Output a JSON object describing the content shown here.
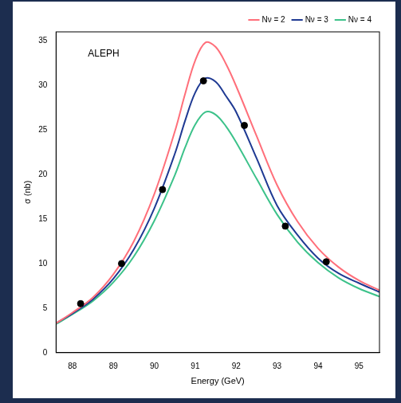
{
  "chart_data": {
    "type": "line",
    "annotation": "ALEPH",
    "x_label": "Energy (GeV)",
    "y_label": "σ (nb)",
    "xlim": [
      87.6,
      95.5
    ],
    "xticks": [
      88,
      89,
      90,
      91,
      92,
      93,
      94,
      95
    ],
    "ylim": [
      0,
      36
    ],
    "yticks": [
      0,
      5,
      10,
      15,
      20,
      25,
      30,
      35
    ],
    "grid": false,
    "legend": "top",
    "x": [
      87.6,
      88.0,
      88.5,
      89.0,
      89.5,
      90.0,
      90.5,
      90.75,
      91.0,
      91.25,
      91.5,
      91.75,
      92.0,
      92.5,
      93.0,
      93.5,
      94.0,
      94.5,
      95.0,
      95.5
    ],
    "series": [
      {
        "name": "Nν = 2",
        "color": "#ff6f7a",
        "values": [
          3.3,
          4.5,
          6.2,
          8.8,
          12.5,
          17.8,
          24.8,
          29.0,
          32.8,
          34.8,
          34.3,
          32.4,
          29.9,
          24.3,
          18.8,
          14.7,
          11.7,
          9.6,
          8.1,
          7.0
        ]
      },
      {
        "name": "Nν = 3",
        "color": "#1f3a93",
        "values": [
          3.3,
          4.4,
          6.0,
          8.3,
          11.6,
          16.2,
          22.3,
          26.0,
          29.2,
          30.8,
          30.4,
          28.8,
          27.0,
          21.8,
          16.5,
          13.2,
          10.6,
          8.9,
          7.8,
          6.8
        ]
      },
      {
        "name": "Nν = 4",
        "color": "#3cc28a",
        "values": [
          3.2,
          4.3,
          5.8,
          7.9,
          10.8,
          14.8,
          19.9,
          23.0,
          25.6,
          27.0,
          26.7,
          25.4,
          23.6,
          19.5,
          15.5,
          12.4,
          10.1,
          8.4,
          7.2,
          6.3
        ]
      },
      {
        "type": "scatter",
        "marker": "circle",
        "color": "#000000",
        "x": [
          88.2,
          89.2,
          90.2,
          91.2,
          92.2,
          93.2,
          94.2
        ],
        "values": [
          5.5,
          10.0,
          18.3,
          30.5,
          25.5,
          14.2,
          10.2
        ]
      }
    ]
  }
}
